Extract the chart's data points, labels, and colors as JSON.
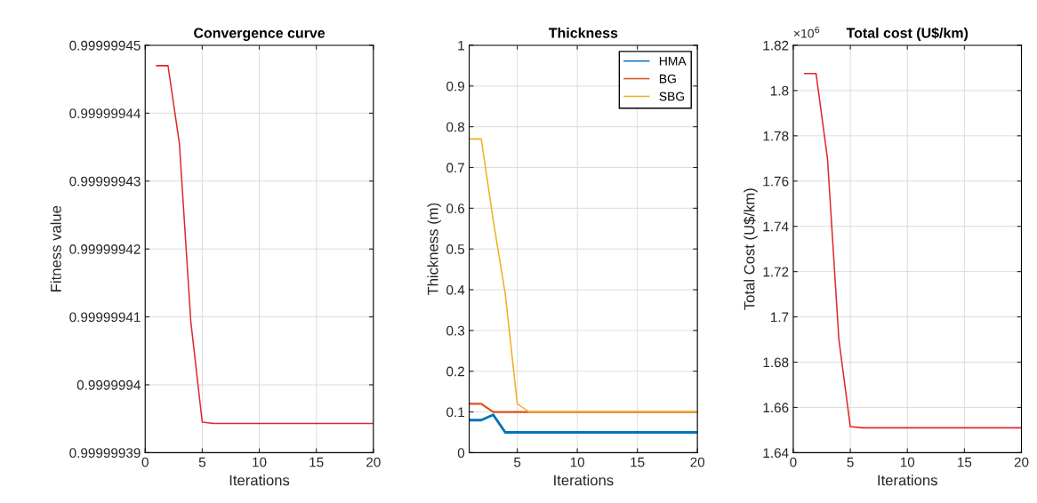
{
  "chart_data": [
    {
      "type": "line",
      "title": "Convergence curve",
      "xlabel": "Iterations",
      "ylabel": "Fitness value",
      "x": [
        1,
        2,
        3,
        4,
        5,
        6,
        7,
        8,
        9,
        10,
        11,
        12,
        13,
        14,
        15,
        16,
        17,
        18,
        19,
        20
      ],
      "series": [
        {
          "color": "#e0262a",
          "values": [
            0.999999447,
            0.999999447,
            0.9999994355,
            0.9999994093,
            0.9999993945,
            0.9999993943,
            0.9999993943,
            0.9999993943,
            0.9999993943,
            0.9999993943,
            0.9999993943,
            0.9999993943,
            0.9999993943,
            0.9999993943,
            0.9999993943,
            0.9999993943,
            0.9999993943,
            0.9999993943,
            0.9999993943,
            0.9999993943
          ]
        }
      ],
      "xlim": [
        0,
        20
      ],
      "xticks": [
        0,
        5,
        10,
        15,
        20
      ],
      "ylim": [
        0.99999939,
        0.99999945
      ],
      "yticks": [
        0.99999939,
        0.9999994,
        0.99999941,
        0.99999942,
        0.99999943,
        0.99999944,
        0.99999945
      ],
      "grid": true,
      "line_style": "solid",
      "marker": "none"
    },
    {
      "type": "line",
      "title": "Thickness",
      "xlabel": "Iterations",
      "ylabel": "Thickness (m)",
      "x": [
        1,
        2,
        3,
        4,
        5,
        6,
        7,
        8,
        9,
        10,
        11,
        12,
        13,
        14,
        15,
        16,
        17,
        18,
        19,
        20
      ],
      "series": [
        {
          "name": "HMA",
          "color": "#0072bd",
          "values": [
            0.08,
            0.08,
            0.093,
            0.05,
            0.05,
            0.05,
            0.05,
            0.05,
            0.05,
            0.05,
            0.05,
            0.05,
            0.05,
            0.05,
            0.05,
            0.05,
            0.05,
            0.05,
            0.05,
            0.05
          ]
        },
        {
          "name": "BG",
          "color": "#d95319",
          "values": [
            0.12,
            0.12,
            0.1,
            0.1,
            0.1,
            0.1,
            0.1,
            0.1,
            0.1,
            0.1,
            0.1,
            0.1,
            0.1,
            0.1,
            0.1,
            0.1,
            0.1,
            0.1,
            0.1,
            0.1
          ]
        },
        {
          "name": "SBG",
          "color": "#edb120",
          "values": [
            0.77,
            0.77,
            0.57,
            0.39,
            0.12,
            0.1,
            0.1,
            0.1,
            0.1,
            0.1,
            0.1,
            0.1,
            0.1,
            0.1,
            0.1,
            0.1,
            0.1,
            0.1,
            0.1,
            0.1
          ]
        }
      ],
      "xlim": [
        1,
        20
      ],
      "xticks": [
        5,
        10,
        15,
        20
      ],
      "ylim": [
        0,
        1
      ],
      "yticks": [
        0,
        0.1,
        0.2,
        0.3,
        0.4,
        0.5,
        0.6,
        0.7,
        0.8,
        0.9,
        1
      ],
      "grid": true,
      "legend": "top right",
      "line_style": "solid",
      "marker": "none"
    },
    {
      "type": "line",
      "title": "Total cost (U$/km)",
      "xlabel": "Iterations",
      "ylabel": "Total Cost (U$/km)",
      "annotations": [
        "×10$^{6}$"
      ],
      "x": [
        1,
        2,
        3,
        4,
        5,
        6,
        7,
        8,
        9,
        10,
        11,
        12,
        13,
        14,
        15,
        16,
        17,
        18,
        19,
        20
      ],
      "series": [
        {
          "color": "#e0262a",
          "values": [
            1.8075,
            1.8075,
            1.77,
            1.69,
            1.6515,
            1.651,
            1.651,
            1.651,
            1.651,
            1.651,
            1.651,
            1.651,
            1.651,
            1.651,
            1.651,
            1.651,
            1.651,
            1.651,
            1.651,
            1.651
          ]
        }
      ],
      "xlim": [
        0,
        20
      ],
      "xticks": [
        0,
        5,
        10,
        15,
        20
      ],
      "ylim": [
        1.64,
        1.82
      ],
      "yticks": [
        1.64,
        1.66,
        1.68,
        1.7,
        1.72,
        1.74,
        1.76,
        1.78,
        1.8,
        1.82
      ],
      "grid": true,
      "line_style": "solid",
      "marker": "none"
    }
  ]
}
